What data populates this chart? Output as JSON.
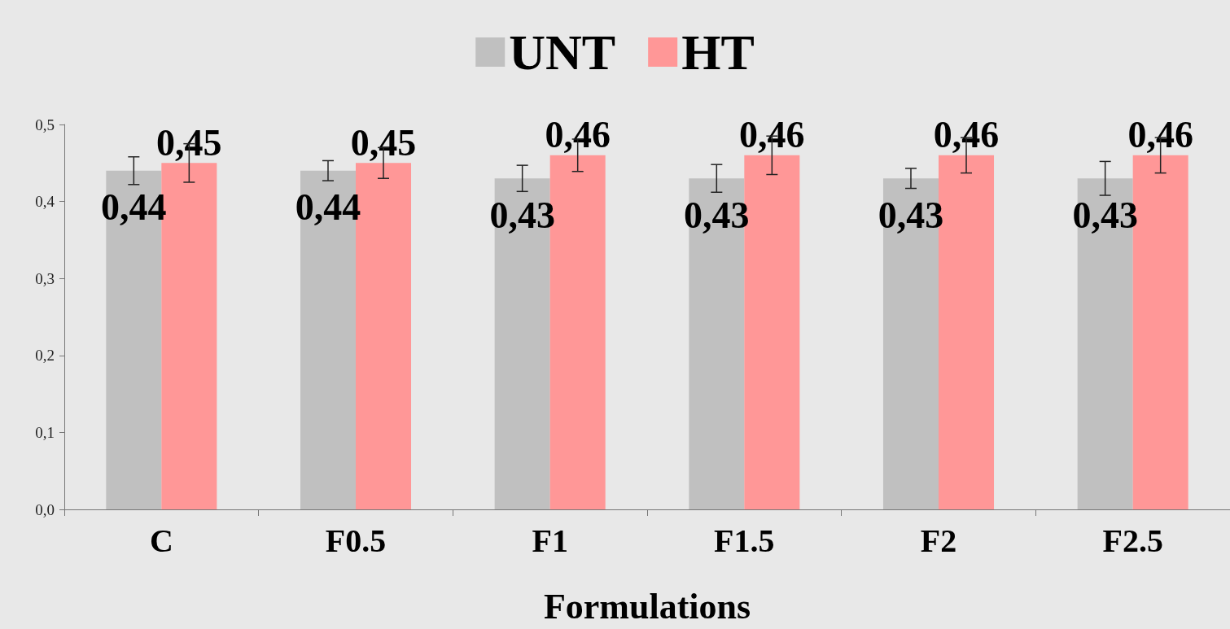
{
  "chart_data": {
    "type": "bar",
    "xlabel": "Formulations",
    "categories": [
      "C",
      "F0.5",
      "F1",
      "F1.5",
      "F2",
      "F2.5"
    ],
    "series": [
      {
        "name": "UNT",
        "color": "#c0c0c0",
        "values": [
          0.44,
          0.44,
          0.43,
          0.43,
          0.43,
          0.43
        ],
        "errors": [
          0.018,
          0.013,
          0.017,
          0.018,
          0.013,
          0.022
        ],
        "value_labels": [
          "0,44",
          "0,44",
          "0,43",
          "0,43",
          "0,43",
          "0,43"
        ]
      },
      {
        "name": "HT",
        "color": "#ff9797",
        "values": [
          0.45,
          0.45,
          0.46,
          0.46,
          0.46,
          0.46
        ],
        "errors": [
          0.025,
          0.02,
          0.021,
          0.025,
          0.023,
          0.023
        ],
        "value_labels": [
          "0,45",
          "0,45",
          "0,46",
          "0,46",
          "0,46",
          "0,46"
        ]
      }
    ],
    "ylim": [
      0,
      0.5
    ],
    "yticks": [
      {
        "value": 0,
        "label": "0,0"
      },
      {
        "value": 0.1,
        "label": "0,1"
      },
      {
        "value": 0.2,
        "label": "0,2"
      },
      {
        "value": 0.3,
        "label": "0,3"
      },
      {
        "value": 0.4,
        "label": "0,4"
      },
      {
        "value": 0.5,
        "label": "0,5"
      }
    ],
    "grid": false,
    "legend": "top"
  }
}
